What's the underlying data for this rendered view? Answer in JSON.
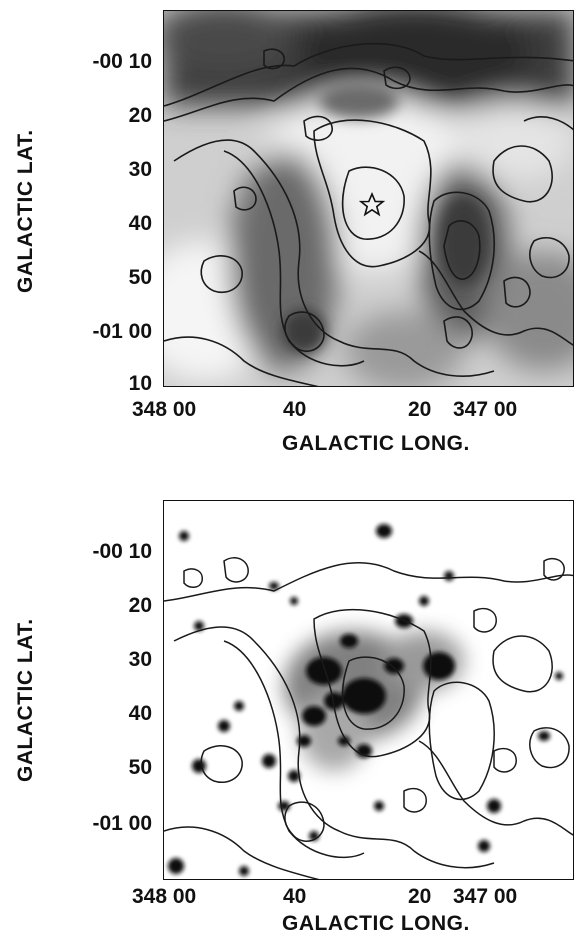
{
  "panels": [
    {
      "id": "top",
      "ylabel": "GALACTIC LAT.",
      "xlabel": "GALACTIC LONG.",
      "lat_ticks": [
        "-00 10",
        "20",
        "30",
        "40",
        "50",
        "-01 00",
        "10"
      ],
      "lon_ticks": [
        "348 00",
        "40",
        "20",
        "347 00"
      ],
      "marker": "star"
    },
    {
      "id": "bottom",
      "ylabel": "GALACTIC LAT.",
      "xlabel": "GALACTIC LONG.",
      "lat_ticks": [
        "-00 10",
        "20",
        "30",
        "40",
        "50",
        "-01 00"
      ],
      "lon_ticks": [
        "348 00",
        "40",
        "20",
        "347 00"
      ]
    }
  ],
  "colors": {
    "ink": "#111111",
    "background": "#ffffff"
  }
}
